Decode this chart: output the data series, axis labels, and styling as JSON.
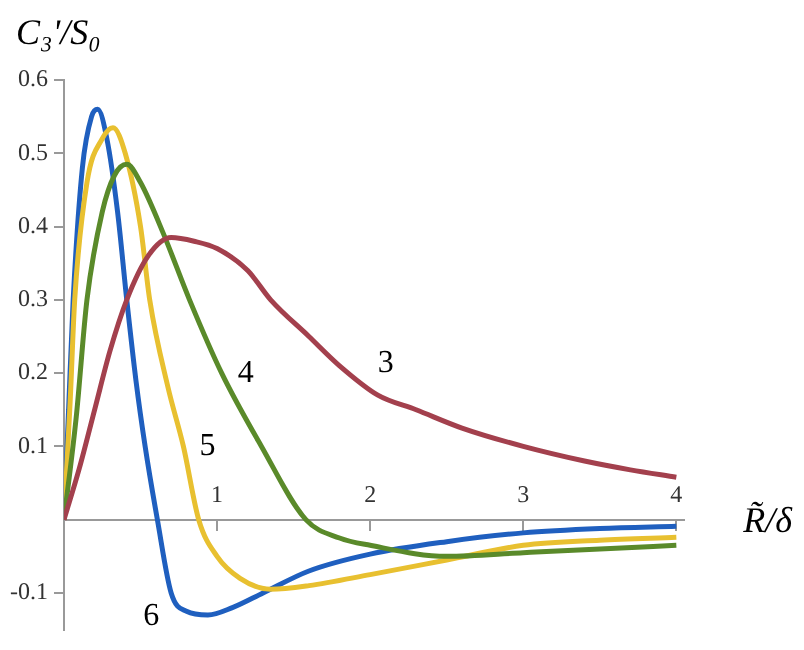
{
  "chart_data": {
    "type": "line",
    "xlabel": "R̃/δ",
    "ylabel": "C₃'/S₀",
    "xlim": [
      0,
      4.05
    ],
    "ylim": [
      -0.15,
      0.6
    ],
    "xticks": [
      1,
      2,
      3,
      4
    ],
    "yticks": [
      -0.1,
      0.1,
      0.2,
      0.3,
      0.4,
      0.5,
      0.6
    ],
    "grid": false,
    "legend": false,
    "marker": "none",
    "line_style": "solid",
    "series": [
      {
        "name": "3",
        "color": "#a3404d",
        "x": [
          0,
          0.1,
          0.2,
          0.3,
          0.41,
          0.55,
          0.7,
          0.85,
          1,
          1.2,
          1.35,
          1.6,
          1.8,
          2.05,
          2.3,
          2.6,
          3,
          3.4,
          3.7,
          4
        ],
        "values": [
          0,
          0.07,
          0.15,
          0.23,
          0.3,
          0.36,
          0.385,
          0.38,
          0.37,
          0.34,
          0.3,
          0.25,
          0.21,
          0.17,
          0.15,
          0.125,
          0.1,
          0.08,
          0.068,
          0.058
        ]
      },
      {
        "name": "4",
        "color": "#5a8a2a",
        "x": [
          0,
          0.08,
          0.15,
          0.25,
          0.33,
          0.41,
          0.5,
          0.65,
          0.82,
          1.03,
          1.29,
          1.58,
          1.8,
          2,
          2.5,
          3,
          3.5,
          4
        ],
        "values": [
          0,
          0.14,
          0.3,
          0.42,
          0.47,
          0.485,
          0.46,
          0.39,
          0.3,
          0.2,
          0.1,
          0,
          -0.025,
          -0.035,
          -0.05,
          -0.045,
          -0.04,
          -0.035
        ]
      },
      {
        "name": "5",
        "color": "#e8c030",
        "x": [
          0,
          0.04,
          0.07,
          0.15,
          0.25,
          0.32,
          0.4,
          0.5,
          0.56,
          0.68,
          0.78,
          0.88,
          1,
          1.15,
          1.35,
          1.6,
          2,
          2.5,
          3,
          3.5,
          4
        ],
        "values": [
          0,
          0.16,
          0.3,
          0.46,
          0.52,
          0.535,
          0.5,
          0.4,
          0.3,
          0.18,
          0.1,
          0,
          -0.05,
          -0.08,
          -0.095,
          -0.09,
          -0.075,
          -0.055,
          -0.035,
          -0.028,
          -0.024
        ]
      },
      {
        "name": "6",
        "color": "#1f5fbf",
        "x": [
          0,
          0.03,
          0.06,
          0.12,
          0.18,
          0.22,
          0.28,
          0.35,
          0.41,
          0.47,
          0.53,
          0.61,
          0.7,
          0.8,
          0.94,
          1.1,
          1.3,
          1.6,
          2,
          2.5,
          3,
          3.5,
          4
        ],
        "values": [
          0,
          0.15,
          0.3,
          0.48,
          0.55,
          0.56,
          0.52,
          0.42,
          0.3,
          0.19,
          0.1,
          0,
          -0.1,
          -0.125,
          -0.13,
          -0.12,
          -0.1,
          -0.07,
          -0.047,
          -0.03,
          -0.018,
          -0.012,
          -0.009
        ]
      }
    ]
  }
}
